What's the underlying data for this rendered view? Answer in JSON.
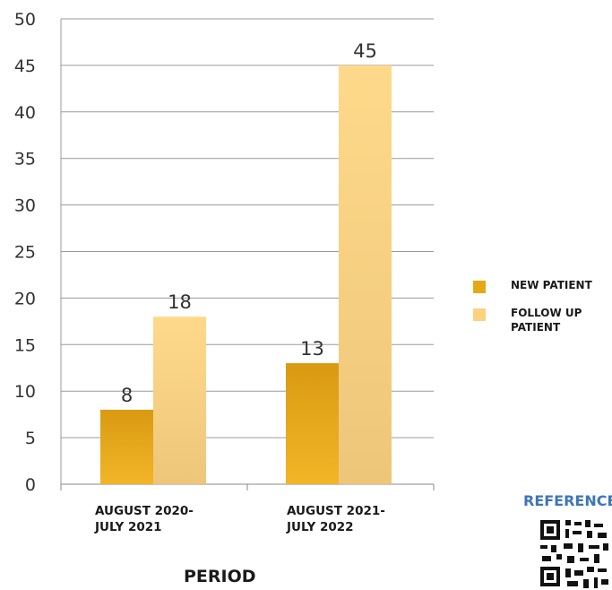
{
  "chart_data": {
    "type": "bar",
    "title": "",
    "xlabel": "PERIOD",
    "ylabel": "",
    "ylim": [
      0,
      50
    ],
    "yticks": [
      0,
      5,
      10,
      15,
      20,
      25,
      30,
      35,
      40,
      45,
      50
    ],
    "categories": [
      [
        "AUGUST 2020-",
        "JULY 2021"
      ],
      [
        "AUGUST 2021-",
        "JULY 2022"
      ]
    ],
    "series": [
      {
        "name": "NEW PATIENT",
        "values": [
          8,
          13
        ],
        "color": "#e6a817"
      },
      {
        "name": "FOLLOW UP PATIENT",
        "values": [
          18,
          45
        ],
        "color": "#fcd27e"
      }
    ],
    "legend": {
      "position": "right",
      "labels": [
        [
          "NEW PATIENT"
        ],
        [
          "FOLLOW UP",
          "PATIENT"
        ]
      ]
    },
    "grid": true
  },
  "corner": {
    "reference_text": "REFERENCES"
  }
}
